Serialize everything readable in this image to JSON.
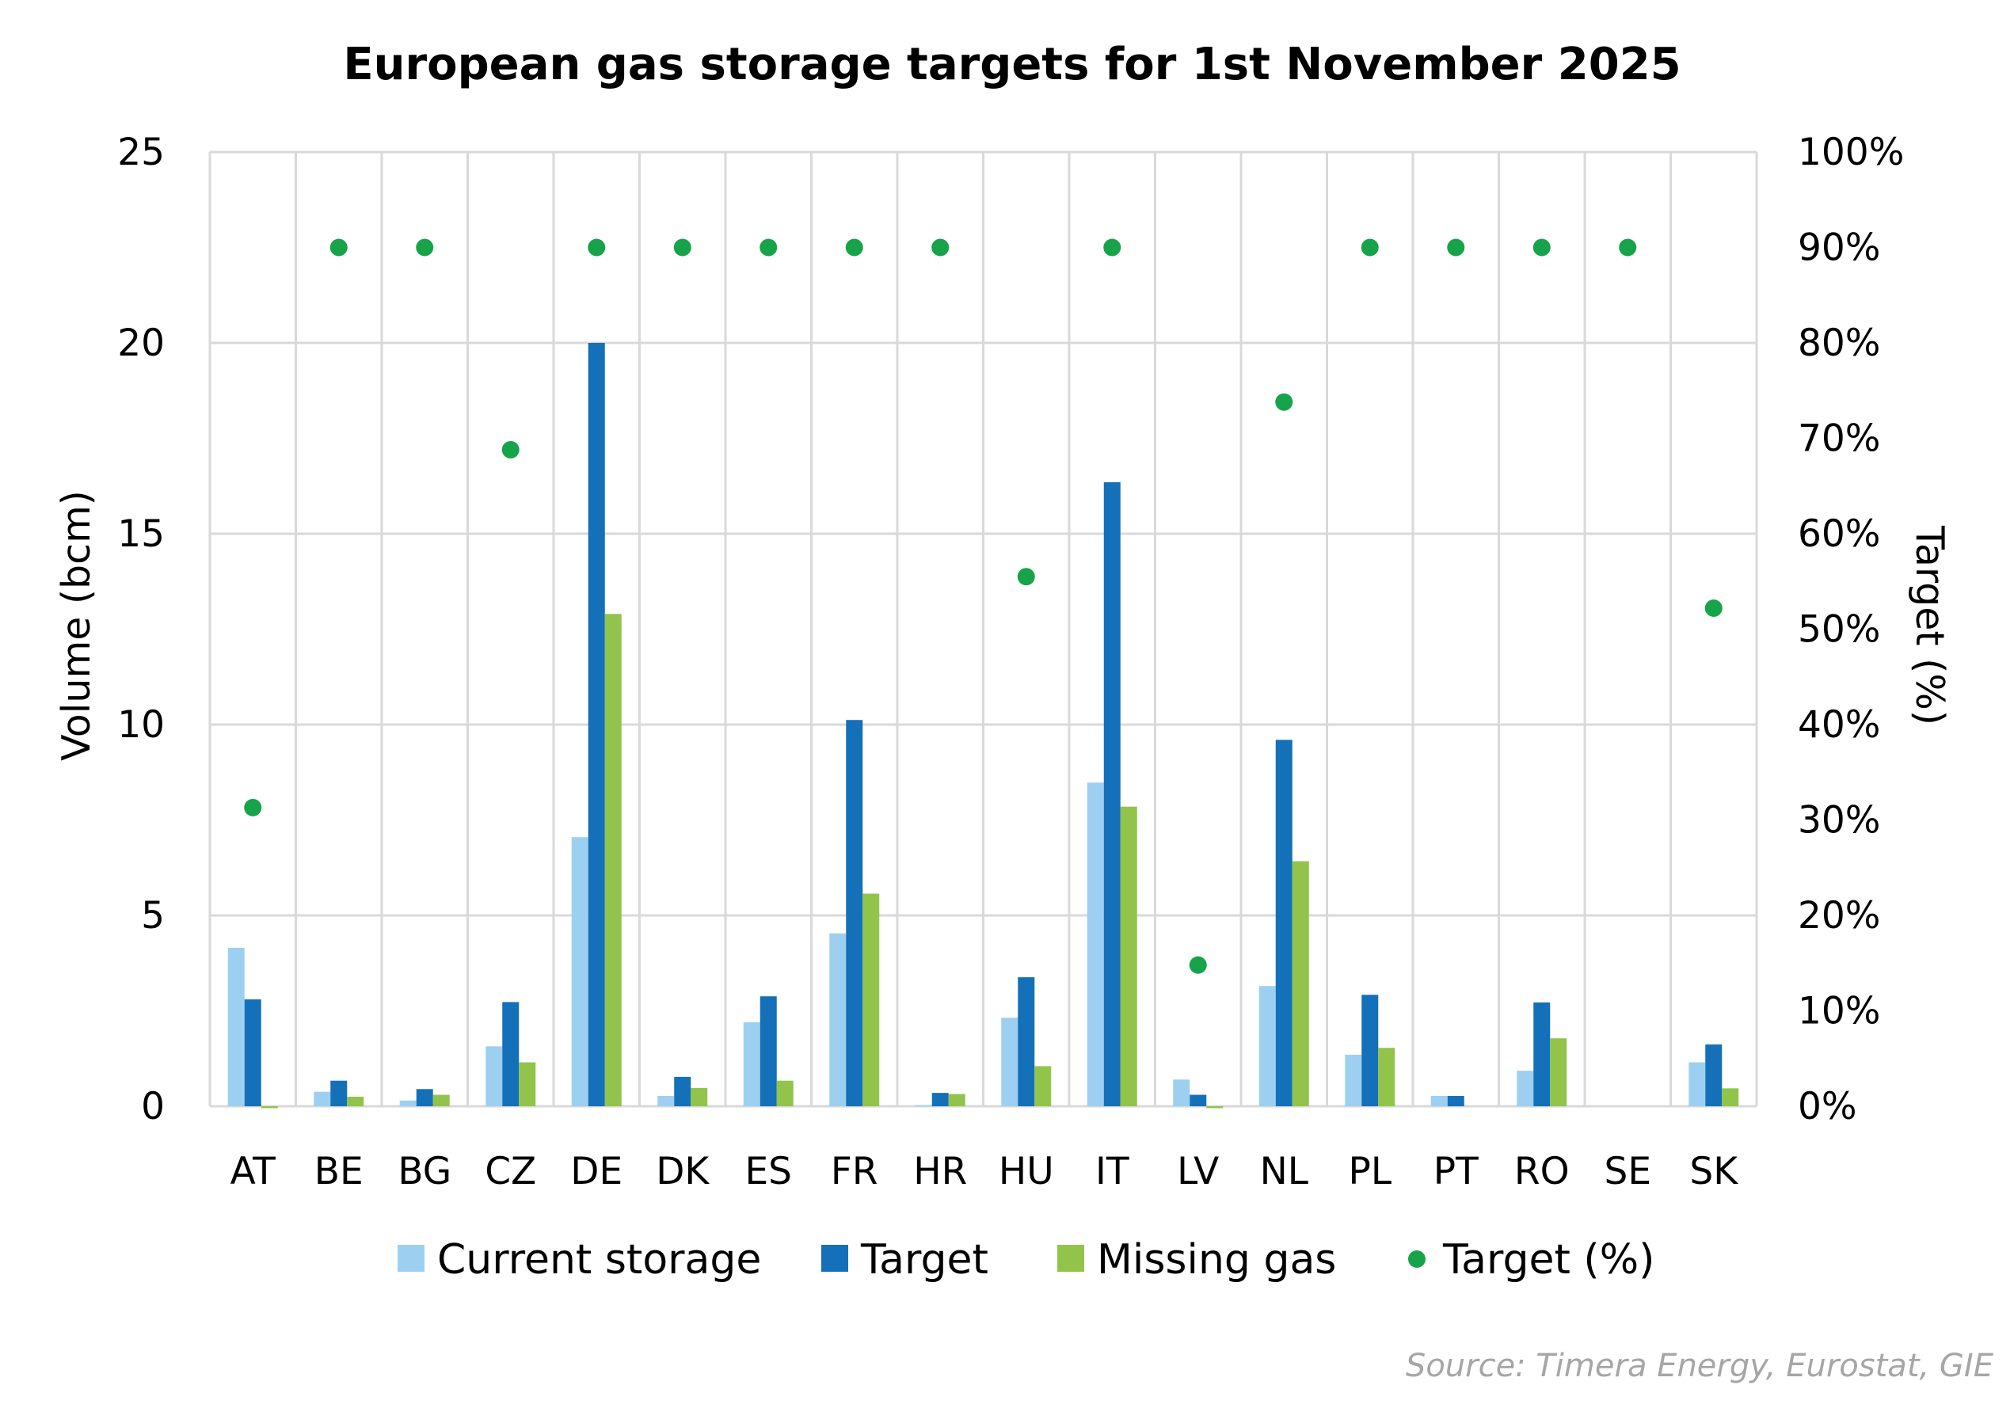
{
  "chart_data": {
    "type": "bar",
    "title": "European gas storage targets for 1st November 2025",
    "categories": [
      "AT",
      "BE",
      "BG",
      "CZ",
      "DE",
      "DK",
      "ES",
      "FR",
      "HR",
      "HU",
      "IT",
      "LV",
      "NL",
      "PL",
      "PT",
      "RO",
      "SE",
      "SK"
    ],
    "series": [
      {
        "name": "Current storage",
        "type": "bar",
        "axis": "left",
        "color": "#9dd0f0",
        "values": [
          4.15,
          0.38,
          0.15,
          1.57,
          7.05,
          0.27,
          2.2,
          4.53,
          0.03,
          2.32,
          8.48,
          0.7,
          3.15,
          1.35,
          0.27,
          0.93,
          0,
          1.15
        ]
      },
      {
        "name": "Target",
        "type": "bar",
        "axis": "left",
        "color": "#1470b8",
        "values": [
          2.8,
          0.67,
          0.45,
          2.73,
          20.0,
          0.77,
          2.88,
          10.12,
          0.35,
          3.38,
          16.35,
          0.3,
          9.6,
          2.92,
          0.27,
          2.72,
          0,
          1.62
        ]
      },
      {
        "name": "Missing gas",
        "type": "bar",
        "axis": "left",
        "color": "#92c44b",
        "values": [
          -0.05,
          0.25,
          0.3,
          1.15,
          12.9,
          0.48,
          0.67,
          5.57,
          0.32,
          1.05,
          7.85,
          -0.05,
          6.42,
          1.53,
          0,
          1.78,
          0,
          0.47
        ]
      },
      {
        "name": "Target (%)",
        "type": "scatter",
        "axis": "right",
        "color": "#17a34a",
        "values": [
          31.3,
          90,
          90,
          68.8,
          90,
          90,
          90,
          90,
          90,
          55.5,
          90,
          14.8,
          73.8,
          90,
          90,
          90,
          90,
          52.2
        ]
      }
    ],
    "ylabel": "Volume (bcm)",
    "ylim": [
      0,
      25
    ],
    "yticks": [
      "0",
      "5",
      "10",
      "15",
      "20",
      "25"
    ],
    "y2label": "Target (%)",
    "y2lim": [
      0,
      100
    ],
    "y2ticks": [
      "0%",
      "10%",
      "20%",
      "30%",
      "40%",
      "50%",
      "60%",
      "70%",
      "80%",
      "90%",
      "100%"
    ],
    "grid": true,
    "legend_position": "bottom",
    "source": "Source: Timera Energy, Eurostat, GIE"
  }
}
